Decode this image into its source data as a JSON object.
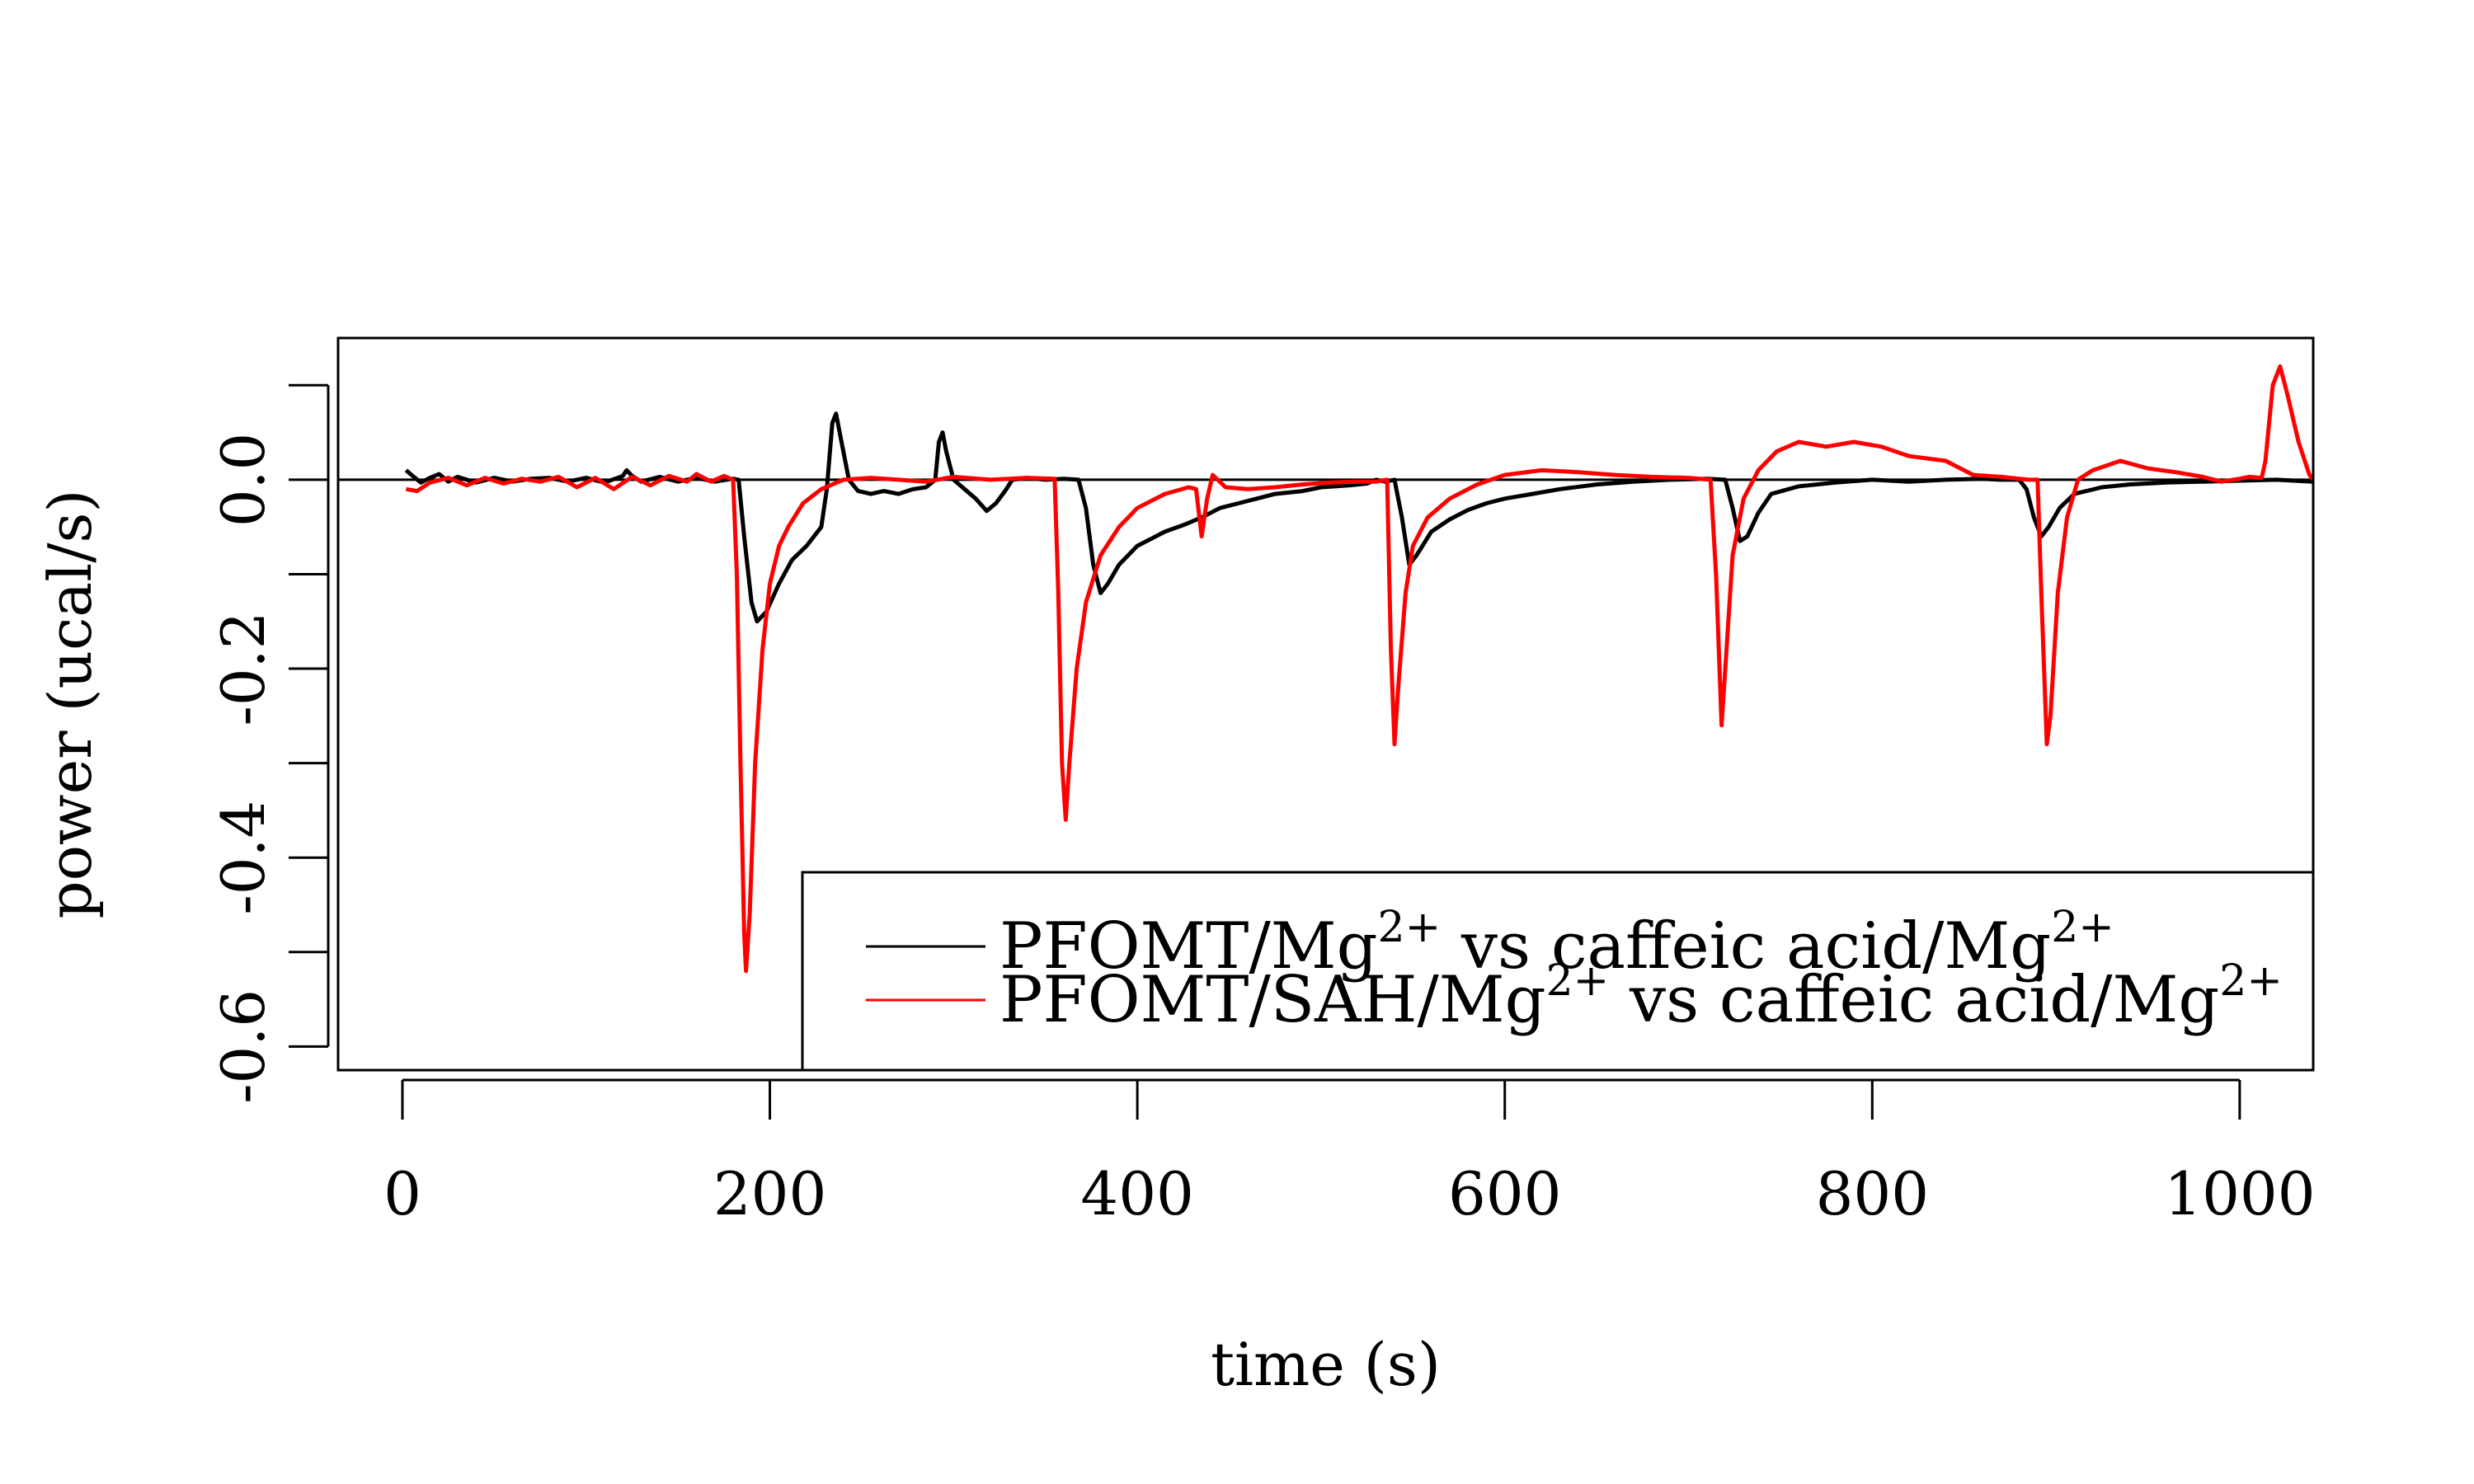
{
  "chart_data": {
    "type": "line",
    "xlabel": "time (s)",
    "ylabel": "power (ucal/s)",
    "xlim": [
      -35,
      1040
    ],
    "ylim": [
      -0.625,
      0.15
    ],
    "x_ticks": [
      0,
      200,
      400,
      600,
      800,
      1000
    ],
    "x_tick_labels": [
      "0",
      "200",
      "400",
      "600",
      "800",
      "1000"
    ],
    "y_ticks": [
      -0.6,
      -0.5,
      -0.4,
      -0.3,
      -0.2,
      -0.1,
      0.0,
      0.1
    ],
    "y_tick_labels": [
      "-0.6",
      "",
      "-0.4",
      "",
      "-0.2",
      "",
      "0.0",
      ""
    ],
    "reference_line_y": 0,
    "legend_position": "bottom-right",
    "series": [
      {
        "name": "PFOMT/Mg2+ vs caffeic acid/Mg2+",
        "legend_text": "PFOMT/Mg",
        "legend_sup": "2+",
        "legend_mid": " vs caffeic acid/Mg",
        "legend_sup2": "2+",
        "color": "#000000",
        "points": [
          [
            2,
            0.01
          ],
          [
            5,
            0.005
          ],
          [
            10,
            -0.003
          ],
          [
            15,
            0.002
          ],
          [
            20,
            0.006
          ],
          [
            25,
            -0.002
          ],
          [
            30,
            0.003
          ],
          [
            40,
            -0.003
          ],
          [
            50,
            0.002
          ],
          [
            60,
            -0.002
          ],
          [
            70,
            0.001
          ],
          [
            80,
            0.002
          ],
          [
            90,
            -0.002
          ],
          [
            100,
            0.002
          ],
          [
            110,
            -0.003
          ],
          [
            120,
            0.004
          ],
          [
            122,
            0.01
          ],
          [
            125,
            0.004
          ],
          [
            130,
            -0.002
          ],
          [
            140,
            0.003
          ],
          [
            150,
            -0.002
          ],
          [
            160,
            0.002
          ],
          [
            170,
            -0.002
          ],
          [
            180,
            0.001
          ],
          [
            183,
            0.0
          ],
          [
            186,
            -0.06
          ],
          [
            190,
            -0.13
          ],
          [
            193,
            -0.15
          ],
          [
            198,
            -0.14
          ],
          [
            205,
            -0.11
          ],
          [
            212,
            -0.085
          ],
          [
            220,
            -0.07
          ],
          [
            228,
            -0.05
          ],
          [
            231,
            -0.01
          ],
          [
            234,
            0.06
          ],
          [
            236,
            0.07
          ],
          [
            239,
            0.04
          ],
          [
            243,
            0.0
          ],
          [
            248,
            -0.012
          ],
          [
            255,
            -0.015
          ],
          [
            262,
            -0.012
          ],
          [
            270,
            -0.015
          ],
          [
            278,
            -0.01
          ],
          [
            285,
            -0.008
          ],
          [
            290,
            0.0
          ],
          [
            292,
            0.04
          ],
          [
            294,
            0.05
          ],
          [
            296,
            0.03
          ],
          [
            300,
            0.0
          ],
          [
            306,
            -0.01
          ],
          [
            312,
            -0.02
          ],
          [
            318,
            -0.033
          ],
          [
            323,
            -0.025
          ],
          [
            328,
            -0.012
          ],
          [
            332,
            0.0
          ],
          [
            340,
            0.002
          ],
          [
            350,
            0.0
          ],
          [
            360,
            0.001
          ],
          [
            368,
            0.0
          ],
          [
            372,
            -0.03
          ],
          [
            376,
            -0.09
          ],
          [
            380,
            -0.12
          ],
          [
            384,
            -0.11
          ],
          [
            390,
            -0.09
          ],
          [
            400,
            -0.07
          ],
          [
            415,
            -0.055
          ],
          [
            425,
            -0.048
          ],
          [
            435,
            -0.04
          ],
          [
            445,
            -0.03
          ],
          [
            455,
            -0.025
          ],
          [
            465,
            -0.02
          ],
          [
            475,
            -0.015
          ],
          [
            490,
            -0.012
          ],
          [
            500,
            -0.008
          ],
          [
            515,
            -0.006
          ],
          [
            525,
            -0.004
          ],
          [
            530,
            0.0
          ],
          [
            535,
            -0.002
          ],
          [
            540,
            0.0
          ],
          [
            544,
            -0.04
          ],
          [
            548,
            -0.09
          ],
          [
            552,
            -0.08
          ],
          [
            560,
            -0.055
          ],
          [
            570,
            -0.042
          ],
          [
            580,
            -0.032
          ],
          [
            590,
            -0.025
          ],
          [
            600,
            -0.02
          ],
          [
            615,
            -0.015
          ],
          [
            630,
            -0.01
          ],
          [
            650,
            -0.005
          ],
          [
            670,
            -0.002
          ],
          [
            690,
            0.0
          ],
          [
            710,
            0.001
          ],
          [
            720,
            0.0
          ],
          [
            724,
            -0.03
          ],
          [
            728,
            -0.065
          ],
          [
            732,
            -0.06
          ],
          [
            738,
            -0.035
          ],
          [
            745,
            -0.015
          ],
          [
            760,
            -0.007
          ],
          [
            780,
            -0.003
          ],
          [
            800,
            0.0
          ],
          [
            820,
            -0.002
          ],
          [
            840,
            0.0
          ],
          [
            860,
            0.001
          ],
          [
            870,
            0.0
          ],
          [
            880,
            0.0
          ],
          [
            884,
            -0.01
          ],
          [
            888,
            -0.04
          ],
          [
            892,
            -0.06
          ],
          [
            896,
            -0.05
          ],
          [
            902,
            -0.03
          ],
          [
            910,
            -0.015
          ],
          [
            925,
            -0.008
          ],
          [
            940,
            -0.005
          ],
          [
            960,
            -0.003
          ],
          [
            980,
            -0.002
          ],
          [
            1000,
            -0.001
          ],
          [
            1020,
            0.0
          ],
          [
            1040,
            -0.002
          ]
        ]
      },
      {
        "name": "PFOMT/SAH/Mg2+ vs caffeic acid/Mg2+",
        "legend_text": "PFOMT/SAH/Mg",
        "legend_sup": "2+",
        "legend_mid": " vs caffeic acid/Mg",
        "legend_sup2": "2+",
        "color": "#ff0000",
        "points": [
          [
            2,
            -0.01
          ],
          [
            8,
            -0.012
          ],
          [
            15,
            -0.003
          ],
          [
            25,
            0.002
          ],
          [
            35,
            -0.006
          ],
          [
            45,
            0.002
          ],
          [
            55,
            -0.004
          ],
          [
            65,
            0.001
          ],
          [
            75,
            -0.002
          ],
          [
            85,
            0.003
          ],
          [
            95,
            -0.008
          ],
          [
            105,
            0.002
          ],
          [
            115,
            -0.01
          ],
          [
            125,
            0.003
          ],
          [
            135,
            -0.006
          ],
          [
            145,
            0.004
          ],
          [
            155,
            -0.002
          ],
          [
            160,
            0.006
          ],
          [
            168,
            -0.002
          ],
          [
            175,
            0.004
          ],
          [
            180,
            0.0
          ],
          [
            182,
            -0.1
          ],
          [
            184,
            -0.3
          ],
          [
            186,
            -0.48
          ],
          [
            187,
            -0.52
          ],
          [
            189,
            -0.46
          ],
          [
            192,
            -0.3
          ],
          [
            196,
            -0.18
          ],
          [
            200,
            -0.11
          ],
          [
            205,
            -0.07
          ],
          [
            210,
            -0.05
          ],
          [
            218,
            -0.025
          ],
          [
            228,
            -0.01
          ],
          [
            240,
            0.0
          ],
          [
            255,
            0.002
          ],
          [
            270,
            0.0
          ],
          [
            285,
            -0.002
          ],
          [
            300,
            0.003
          ],
          [
            320,
            0.0
          ],
          [
            340,
            0.002
          ],
          [
            355,
            0.001
          ],
          [
            357,
            -0.12
          ],
          [
            359,
            -0.3
          ],
          [
            361,
            -0.36
          ],
          [
            363,
            -0.3
          ],
          [
            367,
            -0.2
          ],
          [
            372,
            -0.13
          ],
          [
            380,
            -0.08
          ],
          [
            390,
            -0.05
          ],
          [
            400,
            -0.03
          ],
          [
            415,
            -0.015
          ],
          [
            428,
            -0.008
          ],
          [
            432,
            -0.01
          ],
          [
            435,
            -0.06
          ],
          [
            438,
            -0.02
          ],
          [
            441,
            0.005
          ],
          [
            448,
            -0.008
          ],
          [
            460,
            -0.01
          ],
          [
            475,
            -0.008
          ],
          [
            490,
            -0.005
          ],
          [
            505,
            -0.003
          ],
          [
            520,
            -0.002
          ],
          [
            530,
            -0.002
          ],
          [
            536,
            0.0
          ],
          [
            538,
            -0.18
          ],
          [
            540,
            -0.28
          ],
          [
            542,
            -0.22
          ],
          [
            546,
            -0.12
          ],
          [
            550,
            -0.07
          ],
          [
            558,
            -0.04
          ],
          [
            570,
            -0.02
          ],
          [
            585,
            -0.005
          ],
          [
            600,
            0.005
          ],
          [
            620,
            0.01
          ],
          [
            640,
            0.008
          ],
          [
            660,
            0.005
          ],
          [
            680,
            0.003
          ],
          [
            700,
            0.002
          ],
          [
            712,
            0.0
          ],
          [
            715,
            -0.1
          ],
          [
            718,
            -0.26
          ],
          [
            720,
            -0.2
          ],
          [
            724,
            -0.08
          ],
          [
            730,
            -0.02
          ],
          [
            738,
            0.01
          ],
          [
            748,
            0.03
          ],
          [
            760,
            0.04
          ],
          [
            775,
            0.035
          ],
          [
            790,
            0.04
          ],
          [
            805,
            0.035
          ],
          [
            820,
            0.025
          ],
          [
            840,
            0.02
          ],
          [
            855,
            0.005
          ],
          [
            870,
            0.003
          ],
          [
            885,
            0.0
          ],
          [
            890,
            0.0
          ],
          [
            892,
            -0.12
          ],
          [
            895,
            -0.28
          ],
          [
            897,
            -0.25
          ],
          [
            901,
            -0.12
          ],
          [
            906,
            -0.04
          ],
          [
            912,
            0.0
          ],
          [
            920,
            0.01
          ],
          [
            935,
            0.02
          ],
          [
            950,
            0.012
          ],
          [
            965,
            0.008
          ],
          [
            980,
            0.003
          ],
          [
            990,
            -0.002
          ],
          [
            1000,
            0.001
          ],
          [
            1005,
            0.003
          ],
          [
            1012,
            0.002
          ],
          [
            1014,
            0.02
          ],
          [
            1018,
            0.1
          ],
          [
            1022,
            0.12
          ],
          [
            1026,
            0.09
          ],
          [
            1032,
            0.04
          ],
          [
            1038,
            0.005
          ],
          [
            1040,
            0.0
          ]
        ]
      }
    ]
  }
}
